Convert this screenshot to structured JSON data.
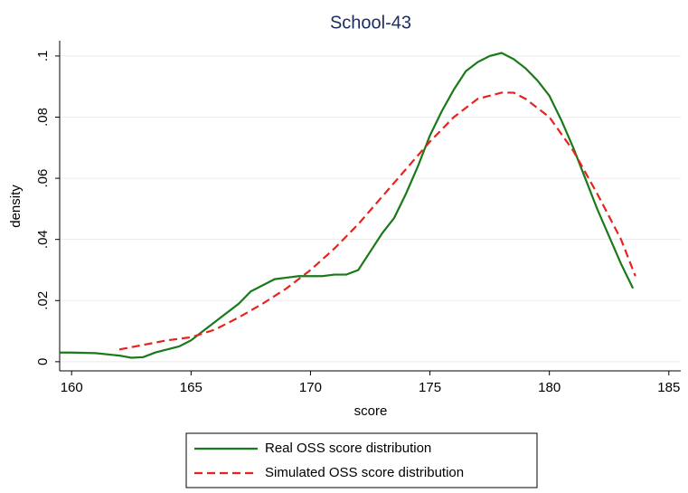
{
  "chart_data": {
    "type": "line",
    "title": "School-43",
    "xlabel": "score",
    "ylabel": "density",
    "xlim": [
      159.5,
      185.5
    ],
    "xticks": [
      160,
      165,
      170,
      175,
      180,
      185
    ],
    "ylim": [
      -0.003,
      0.105
    ],
    "yticks": [
      0,
      {
        "value": 0.02,
        "label": ".02"
      },
      {
        "value": 0.04,
        "label": ".04"
      },
      {
        "value": 0.06,
        "label": ".06"
      },
      {
        "value": 0.08,
        "label": ".08"
      },
      {
        "value": 0.1,
        "label": ".1"
      }
    ],
    "grid": true,
    "legend": "bottom",
    "series": [
      {
        "name": "Real OSS score distribution",
        "color": "#1a7a1a",
        "dash": false,
        "x": [
          159.5,
          160,
          161,
          162,
          162.5,
          163,
          163.5,
          164,
          164.5,
          165,
          165.5,
          166,
          166.5,
          167,
          167.5,
          168,
          168.5,
          169,
          169.5,
          170,
          170.5,
          171,
          171.5,
          172,
          172.5,
          173,
          173.5,
          174,
          174.5,
          175,
          175.5,
          176,
          176.5,
          177,
          177.5,
          178,
          178.5,
          179,
          179.5,
          180,
          180.5,
          181,
          181.5,
          182,
          182.5,
          183,
          183.5
        ],
        "values": [
          0.003,
          0.003,
          0.0028,
          0.002,
          0.0013,
          0.0015,
          0.003,
          0.004,
          0.005,
          0.007,
          0.01,
          0.013,
          0.016,
          0.019,
          0.023,
          0.025,
          0.027,
          0.0275,
          0.028,
          0.028,
          0.028,
          0.0285,
          0.0285,
          0.03,
          0.036,
          0.042,
          0.047,
          0.055,
          0.064,
          0.074,
          0.082,
          0.089,
          0.095,
          0.098,
          0.1,
          0.101,
          0.099,
          0.096,
          0.092,
          0.087,
          0.079,
          0.07,
          0.06,
          0.05,
          0.041,
          0.032,
          0.024
        ]
      },
      {
        "name": "Simulated OSS score distribution",
        "color": "#e8231f",
        "dash": true,
        "x": [
          162,
          163,
          164,
          165,
          166,
          167,
          168,
          169,
          170,
          171,
          172,
          173,
          174,
          175,
          176,
          177,
          178,
          178.5,
          179,
          180,
          181,
          182,
          183,
          183.6
        ],
        "values": [
          0.004,
          0.0055,
          0.007,
          0.008,
          0.0105,
          0.0145,
          0.019,
          0.024,
          0.03,
          0.037,
          0.045,
          0.054,
          0.063,
          0.072,
          0.08,
          0.086,
          0.088,
          0.088,
          0.086,
          0.08,
          0.069,
          0.055,
          0.04,
          0.028
        ]
      }
    ]
  }
}
